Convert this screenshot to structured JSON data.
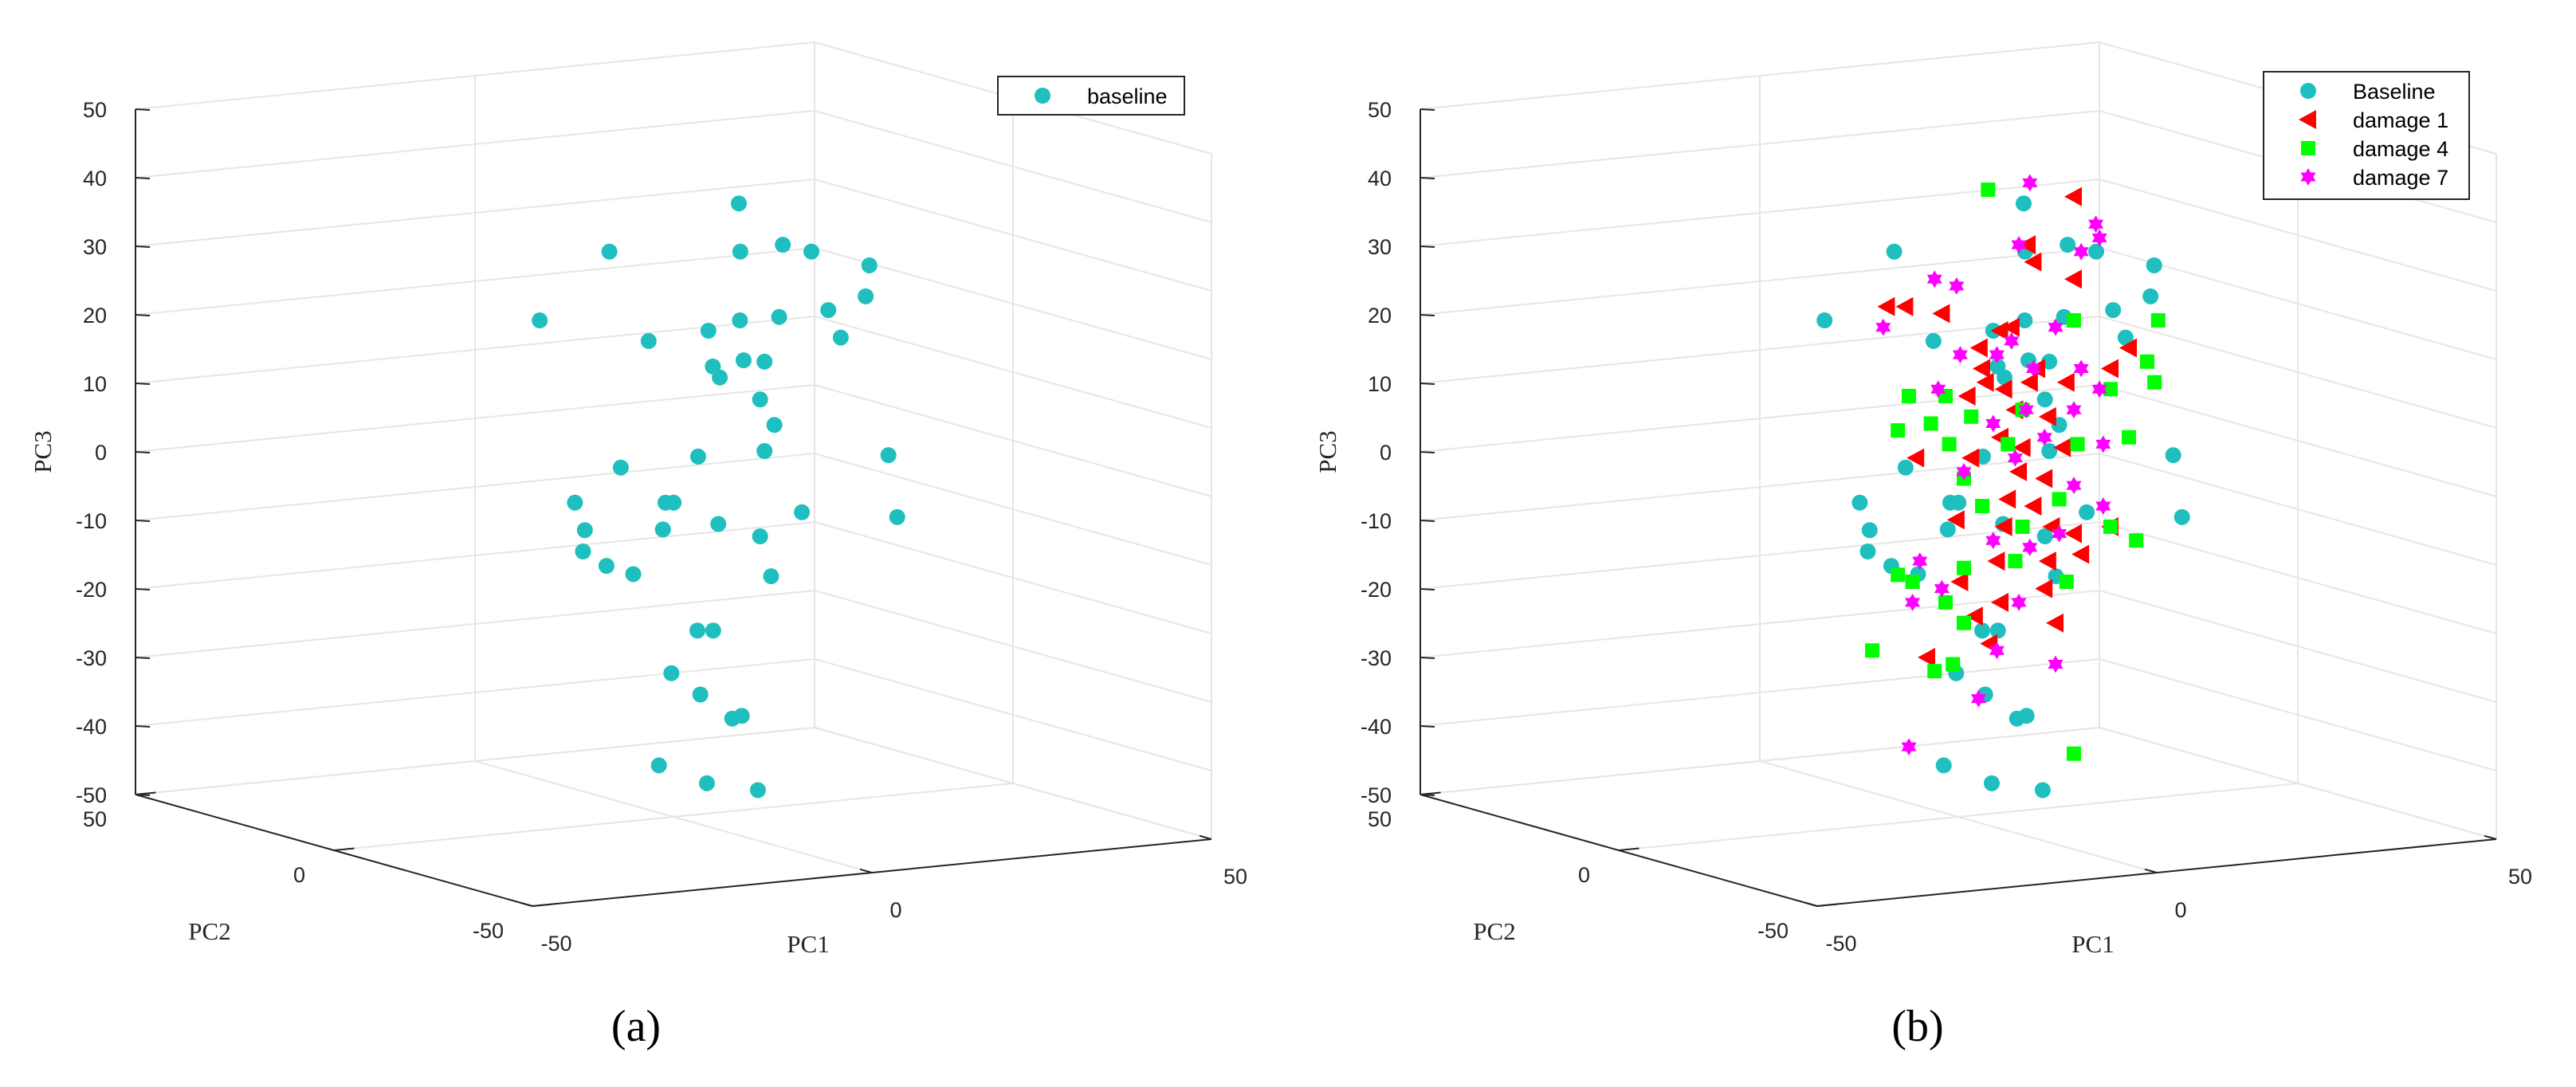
{
  "chart_data": [
    {
      "type": "scatter",
      "panel_label": "(a)",
      "xlabel": "PC1",
      "ylabel": "PC2",
      "zlabel": "PC3",
      "xlim": [
        -50,
        50
      ],
      "ylim": [
        -50,
        50
      ],
      "zlim": [
        -50,
        50
      ],
      "x_ticks": [
        "-50",
        "0",
        "50"
      ],
      "y_ticks": [
        "-50",
        "0",
        "50"
      ],
      "z_ticks": [
        "-50",
        "-40",
        "-30",
        "-20",
        "-10",
        "0",
        "10",
        "20",
        "30",
        "40",
        "50"
      ],
      "grid": true,
      "legend_position": "top-right",
      "series": [
        {
          "name": "baseline",
          "color": "#1fbfbf",
          "marker": "circle",
          "points": [
            [
              6.3,
              0,
              36
            ],
            [
              -29,
              0,
              29
            ],
            [
              6.7,
              0,
              29
            ],
            [
              18.3,
              0,
              30
            ],
            [
              26.1,
              0,
              29
            ],
            [
              41.9,
              0,
              27
            ],
            [
              -48,
              0,
              19
            ],
            [
              -18.3,
              0,
              16
            ],
            [
              6.6,
              0,
              19
            ],
            [
              17.3,
              0,
              19.5
            ],
            [
              30.7,
              0,
              20.5
            ],
            [
              34.1,
              0,
              16.5
            ],
            [
              40.9,
              0,
              22.5
            ],
            [
              -2,
              0,
              17.5
            ],
            [
              -0.8,
              0,
              12.3
            ],
            [
              7.6,
              0,
              13.2
            ],
            [
              1.1,
              0,
              10.7
            ],
            [
              13.3,
              0,
              13
            ],
            [
              12.1,
              0,
              7.5
            ],
            [
              16,
              0,
              3.8
            ],
            [
              -25.9,
              0,
              -2.4
            ],
            [
              -4.8,
              0,
              -0.8
            ],
            [
              13.3,
              0,
              0
            ],
            [
              47.1,
              0,
              -0.6
            ],
            [
              -38.4,
              0,
              -7.5
            ],
            [
              -11.5,
              0,
              -7.5
            ],
            [
              -13.7,
              0,
              -7.5
            ],
            [
              -35.7,
              0,
              -11.5
            ],
            [
              -14.4,
              0,
              -11.4
            ],
            [
              0.7,
              0,
              -10.6
            ],
            [
              23.5,
              0,
              -8.9
            ],
            [
              12.1,
              0,
              -12.4
            ],
            [
              49.5,
              0,
              -9.6
            ],
            [
              -36.2,
              0,
              -14.6
            ],
            [
              -29.8,
              0,
              -16.7
            ],
            [
              -22.5,
              0,
              -17.9
            ],
            [
              15.1,
              0,
              -18.2
            ],
            [
              -5,
              0,
              -26.1
            ],
            [
              -0.7,
              0,
              -26.1
            ],
            [
              -12.1,
              0,
              -32.3
            ],
            [
              -4.2,
              0,
              -35.4
            ],
            [
              4.5,
              0,
              -38.9
            ],
            [
              7.1,
              0,
              -38.5
            ],
            [
              -15.5,
              0,
              -45.7
            ],
            [
              -2.4,
              0,
              -48.3
            ],
            [
              11.5,
              0,
              -49.3
            ]
          ]
        }
      ]
    },
    {
      "type": "scatter",
      "panel_label": "(b)",
      "xlabel": "PC1",
      "ylabel": "PC2",
      "zlabel": "PC3",
      "xlim": [
        -50,
        50
      ],
      "ylim": [
        -50,
        50
      ],
      "zlim": [
        -50,
        50
      ],
      "x_ticks": [
        "-50",
        "0",
        "50"
      ],
      "y_ticks": [
        "-50",
        "0",
        "50"
      ],
      "z_ticks": [
        "-50",
        "-40",
        "-30",
        "-20",
        "-10",
        "0",
        "10",
        "20",
        "30",
        "40",
        "50"
      ],
      "grid": true,
      "legend_position": "top-right",
      "series": [
        {
          "name": "Baseline",
          "color": "#1fbfbf",
          "marker": "circle",
          "points": [
            [
              6.3,
              0,
              36
            ],
            [
              -29,
              0,
              29
            ],
            [
              6.7,
              0,
              29
            ],
            [
              18.3,
              0,
              30
            ],
            [
              26.1,
              0,
              29
            ],
            [
              41.9,
              0,
              27
            ],
            [
              -48,
              0,
              19
            ],
            [
              -18.3,
              0,
              16
            ],
            [
              6.6,
              0,
              19
            ],
            [
              17.3,
              0,
              19.5
            ],
            [
              30.7,
              0,
              20.5
            ],
            [
              34.1,
              0,
              16.5
            ],
            [
              40.9,
              0,
              22.5
            ],
            [
              -2,
              0,
              17.5
            ],
            [
              -0.8,
              0,
              12.3
            ],
            [
              7.6,
              0,
              13.2
            ],
            [
              1.1,
              0,
              10.7
            ],
            [
              13.3,
              0,
              13
            ],
            [
              12.1,
              0,
              7.5
            ],
            [
              16,
              0,
              3.8
            ],
            [
              -25.9,
              0,
              -2.4
            ],
            [
              -4.8,
              0,
              -0.8
            ],
            [
              13.3,
              0,
              0
            ],
            [
              47.1,
              0,
              -0.6
            ],
            [
              -38.4,
              0,
              -7.5
            ],
            [
              -11.5,
              0,
              -7.5
            ],
            [
              -13.7,
              0,
              -7.5
            ],
            [
              -35.7,
              0,
              -11.5
            ],
            [
              -14.4,
              0,
              -11.4
            ],
            [
              0.7,
              0,
              -10.6
            ],
            [
              23.5,
              0,
              -8.9
            ],
            [
              12.1,
              0,
              -12.4
            ],
            [
              49.5,
              0,
              -9.6
            ],
            [
              -36.2,
              0,
              -14.6
            ],
            [
              -29.8,
              0,
              -16.7
            ],
            [
              -22.5,
              0,
              -17.9
            ],
            [
              15.1,
              0,
              -18.2
            ],
            [
              -5,
              0,
              -26.1
            ],
            [
              -0.7,
              0,
              -26.1
            ],
            [
              -12.1,
              0,
              -32.3
            ],
            [
              -4.2,
              0,
              -35.4
            ],
            [
              4.5,
              0,
              -38.9
            ],
            [
              7.1,
              0,
              -38.5
            ],
            [
              -15.5,
              0,
              -45.7
            ],
            [
              -2.4,
              0,
              -48.3
            ],
            [
              11.5,
              0,
              -49.3
            ]
          ]
        },
        {
          "name": "damage 1",
          "color": "#ff0000",
          "marker": "triangle-left",
          "points": [
            [
              20,
              0,
              37
            ],
            [
              7.4,
              0,
              30
            ],
            [
              9,
              0,
              27.5
            ],
            [
              20,
              0,
              25
            ],
            [
              -31,
              0,
              21
            ],
            [
              -26,
              0,
              21
            ],
            [
              -16,
              0,
              20
            ],
            [
              -0.1,
              0,
              17.5
            ],
            [
              3,
              0,
              18
            ],
            [
              -5.7,
              0,
              15
            ],
            [
              -4,
              0,
              10
            ],
            [
              -5,
              0,
              12
            ],
            [
              1,
              0,
              9
            ],
            [
              8,
              0,
              10
            ],
            [
              10,
              0,
              12
            ],
            [
              18,
              0,
              10
            ],
            [
              30,
              0,
              12
            ],
            [
              35,
              0,
              15
            ],
            [
              -9,
              0,
              8
            ],
            [
              4,
              0,
              6
            ],
            [
              13,
              0,
              5
            ],
            [
              -8,
              0,
              -1
            ],
            [
              0,
              0,
              2
            ],
            [
              6,
              0,
              0.5
            ],
            [
              17,
              0,
              0.5
            ],
            [
              -23,
              0,
              -1
            ],
            [
              5,
              0,
              -3
            ],
            [
              12,
              0,
              -4
            ],
            [
              2,
              0,
              -7
            ],
            [
              9,
              0,
              -8
            ],
            [
              -12,
              0,
              -10
            ],
            [
              1,
              0,
              -11
            ],
            [
              14,
              0,
              -11
            ],
            [
              20,
              0,
              -12
            ],
            [
              30,
              0,
              -11
            ],
            [
              -1,
              0,
              -16
            ],
            [
              13,
              0,
              -16
            ],
            [
              22,
              0,
              -15
            ],
            [
              -11,
              0,
              -19
            ],
            [
              0,
              0,
              -22
            ],
            [
              12,
              0,
              -20
            ],
            [
              -7,
              0,
              -24
            ],
            [
              15,
              0,
              -25
            ],
            [
              -20,
              0,
              -30
            ],
            [
              -3,
              0,
              -28
            ]
          ]
        },
        {
          "name": "damage 4",
          "color": "#00ff00",
          "marker": "square",
          "points": [
            [
              -3.4,
              0,
              38
            ],
            [
              20,
              0,
              19
            ],
            [
              43,
              0,
              19
            ],
            [
              40,
              0,
              13
            ],
            [
              42,
              0,
              10
            ],
            [
              6,
              0,
              6
            ],
            [
              30,
              0,
              9
            ],
            [
              -25,
              0,
              8
            ],
            [
              -15,
              0,
              8
            ],
            [
              -8,
              0,
              5
            ],
            [
              -19,
              0,
              4
            ],
            [
              -28,
              0,
              3
            ],
            [
              -14,
              0,
              1
            ],
            [
              2,
              0,
              1
            ],
            [
              21,
              0,
              1
            ],
            [
              35,
              0,
              2
            ],
            [
              -10,
              0,
              -4
            ],
            [
              -5,
              0,
              -8
            ],
            [
              16,
              0,
              -7
            ],
            [
              6,
              0,
              -11
            ],
            [
              30,
              0,
              -11
            ],
            [
              37,
              0,
              -13
            ],
            [
              -10,
              0,
              -17
            ],
            [
              4,
              0,
              -16
            ],
            [
              -28,
              0,
              -18
            ],
            [
              -15,
              0,
              -22
            ],
            [
              -24,
              0,
              -19
            ],
            [
              18,
              0,
              -19
            ],
            [
              -10,
              0,
              -25
            ],
            [
              -35,
              0,
              -29
            ],
            [
              -13,
              0,
              -31
            ],
            [
              -18,
              0,
              -32
            ],
            [
              20,
              0,
              -44
            ]
          ]
        },
        {
          "name": "damage 7",
          "color": "#ff00ff",
          "marker": "hexagram",
          "points": [
            [
              8,
              0,
              39
            ],
            [
              26,
              0,
              33
            ],
            [
              27,
              0,
              31
            ],
            [
              -18,
              0,
              25
            ],
            [
              -12,
              0,
              24
            ],
            [
              5,
              0,
              30
            ],
            [
              22,
              0,
              29
            ],
            [
              -32,
              0,
              18
            ],
            [
              3,
              0,
              16
            ],
            [
              15,
              0,
              18
            ],
            [
              -11,
              0,
              14
            ],
            [
              -1,
              0,
              14
            ],
            [
              9,
              0,
              12
            ],
            [
              22,
              0,
              12
            ],
            [
              27,
              0,
              9
            ],
            [
              -17,
              0,
              9
            ],
            [
              7,
              0,
              6
            ],
            [
              20,
              0,
              6
            ],
            [
              -2,
              0,
              4
            ],
            [
              12,
              0,
              2
            ],
            [
              28,
              0,
              1
            ],
            [
              -10,
              0,
              -3
            ],
            [
              4,
              0,
              -1
            ],
            [
              20,
              0,
              -5
            ],
            [
              28,
              0,
              -8
            ],
            [
              -2,
              0,
              -13
            ],
            [
              16,
              0,
              -12
            ],
            [
              -22,
              0,
              -16
            ],
            [
              8,
              0,
              -14
            ],
            [
              -16,
              0,
              -20
            ],
            [
              5,
              0,
              -22
            ],
            [
              -24,
              0,
              -22
            ],
            [
              -1,
              0,
              -29
            ],
            [
              15,
              0,
              -31
            ],
            [
              -6,
              0,
              -36
            ],
            [
              -25,
              0,
              -43
            ]
          ]
        }
      ]
    }
  ]
}
